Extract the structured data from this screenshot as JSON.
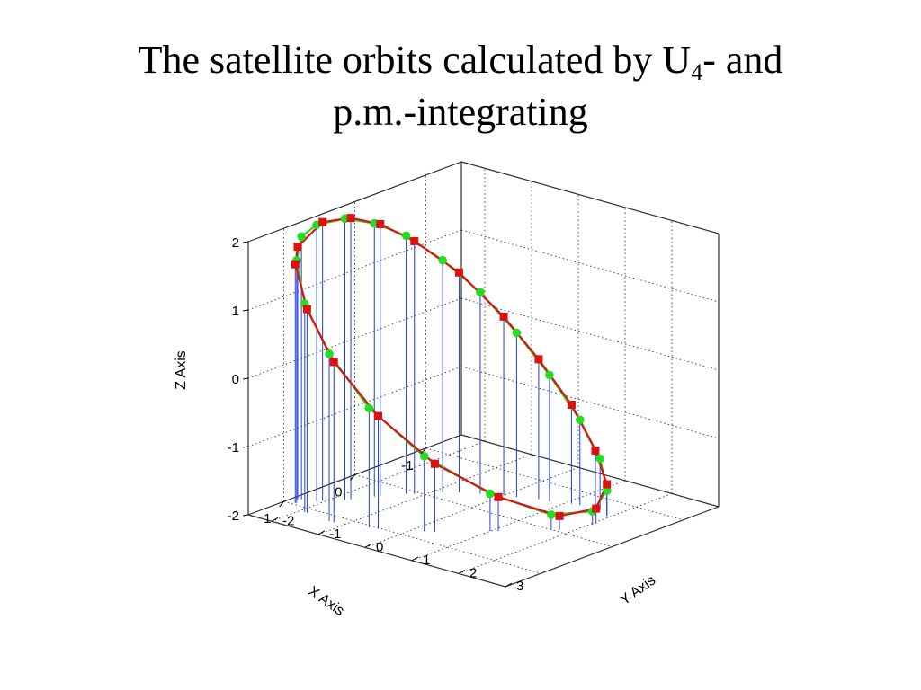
{
  "slide": {
    "title_main": "The satellite orbits calculated by U",
    "title_sub": "4",
    "title_tail": "- and",
    "title_line2": "p.m.-integrating"
  },
  "chart_data": {
    "type": "scatter",
    "projection": "3d",
    "xlabel": "X Axis",
    "ylabel": "Y Axis",
    "zlabel": "Z Axis",
    "xlim": [
      -1.5,
      1.5
    ],
    "ylim": [
      -2.5,
      3
    ],
    "zlim": [
      -2,
      2
    ],
    "x_ticks": [
      -1,
      0,
      1
    ],
    "y_ticks": [
      -2,
      -1,
      0,
      1,
      2,
      3
    ],
    "z_ticks": [
      -2,
      -1,
      0,
      1,
      2
    ],
    "grid": true,
    "drop_lines": true,
    "colors": {
      "series_green": "#22dd22",
      "series_red": "#dd1111",
      "drop_line": "#1f3fd8",
      "grid": "#333333"
    },
    "series": [
      {
        "marker": "circle",
        "color": "#22dd22",
        "points": [
          {
            "x": 0.85,
            "y": -2.35,
            "z": 1.85
          },
          {
            "x": 0.8,
            "y": -2.1,
            "z": 2.05
          },
          {
            "x": 0.6,
            "y": -1.8,
            "z": 2.12
          },
          {
            "x": 0.35,
            "y": -1.55,
            "z": 2.0
          },
          {
            "x": 0.1,
            "y": -1.25,
            "z": 1.78
          },
          {
            "x": -0.15,
            "y": -0.85,
            "z": 1.4
          },
          {
            "x": -0.35,
            "y": -0.35,
            "z": 0.95
          },
          {
            "x": -0.5,
            "y": 0.2,
            "z": 0.4
          },
          {
            "x": -0.6,
            "y": 0.75,
            "z": -0.15
          },
          {
            "x": -0.7,
            "y": 1.25,
            "z": -0.75
          },
          {
            "x": -0.72,
            "y": 1.65,
            "z": -1.25
          },
          {
            "x": -0.62,
            "y": 1.95,
            "z": -1.62
          },
          {
            "x": -0.35,
            "y": 2.05,
            "z": -1.8
          },
          {
            "x": 0.0,
            "y": 1.7,
            "z": -1.78
          },
          {
            "x": 0.4,
            "y": 1.0,
            "z": -1.45
          },
          {
            "x": 0.8,
            "y": 0.2,
            "z": -0.9
          },
          {
            "x": 1.05,
            "y": -0.6,
            "z": -0.25
          },
          {
            "x": 1.15,
            "y": -1.3,
            "z": 0.45
          },
          {
            "x": 1.1,
            "y": -1.9,
            "z": 1.05
          },
          {
            "x": 0.95,
            "y": -2.3,
            "z": 1.55
          }
        ]
      },
      {
        "marker": "square",
        "color": "#dd1111",
        "points": [
          {
            "x": 0.87,
            "y": -2.4,
            "z": 1.7
          },
          {
            "x": 0.75,
            "y": -2.05,
            "z": 2.08
          },
          {
            "x": 0.55,
            "y": -1.75,
            "z": 2.12
          },
          {
            "x": 0.3,
            "y": -1.5,
            "z": 1.98
          },
          {
            "x": 0.05,
            "y": -1.15,
            "z": 1.7
          },
          {
            "x": -0.25,
            "y": -0.65,
            "z": 1.22
          },
          {
            "x": -0.45,
            "y": 0.0,
            "z": 0.62
          },
          {
            "x": -0.58,
            "y": 0.55,
            "z": 0.05
          },
          {
            "x": -0.68,
            "y": 1.1,
            "z": -0.55
          },
          {
            "x": -0.72,
            "y": 1.55,
            "z": -1.15
          },
          {
            "x": -0.65,
            "y": 1.9,
            "z": -1.55
          },
          {
            "x": -0.4,
            "y": 2.05,
            "z": -1.78
          },
          {
            "x": -0.05,
            "y": 1.8,
            "z": -1.8
          },
          {
            "x": 0.35,
            "y": 1.1,
            "z": -1.5
          },
          {
            "x": 0.75,
            "y": 0.35,
            "z": -1.0
          },
          {
            "x": 1.02,
            "y": -0.45,
            "z": -0.35
          },
          {
            "x": 1.15,
            "y": -1.2,
            "z": 0.35
          },
          {
            "x": 1.1,
            "y": -1.85,
            "z": 0.98
          },
          {
            "x": 0.97,
            "y": -2.3,
            "z": 1.5
          }
        ]
      }
    ]
  }
}
